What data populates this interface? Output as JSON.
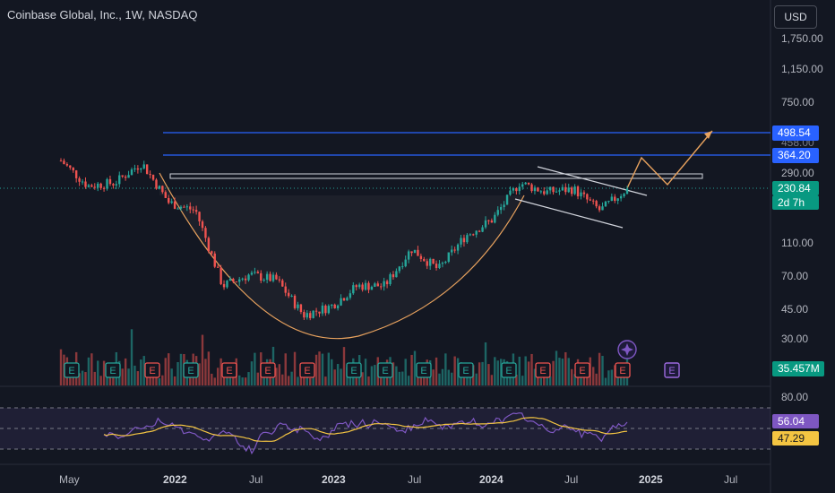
{
  "header": {
    "title": "Coinbase Global, Inc., 1W, NASDAQ",
    "currency_label": "USD"
  },
  "colors": {
    "background": "#131722",
    "up": "#26a69a",
    "down": "#ef5350",
    "blue_line": "#2962ff",
    "projection": "#e8a25e",
    "rsi": "#7e57c2",
    "rsi_ma": "#f4c542"
  },
  "price_axis": {
    "ticks": [
      "1,750.00",
      "1,150.00",
      "750.00",
      "290.00",
      "110.00",
      "70.00",
      "45.00",
      "30.00"
    ],
    "partial_tick": "458.00"
  },
  "rsi_axis": {
    "ticks": [
      "80.00"
    ]
  },
  "tags": {
    "upper_resistance": "498.54",
    "lower_resistance": "364.20",
    "last_price": "230.84",
    "countdown": "2d 7h",
    "volume": "35.457M",
    "rsi": "56.04",
    "rsi_ma": "47.29"
  },
  "x_axis": {
    "labels": [
      "May",
      "2022",
      "Jul",
      "2023",
      "Jul",
      "2024",
      "Jul",
      "2025",
      "Jul"
    ]
  },
  "earnings_markers": {
    "letter": "E"
  },
  "chart_data": {
    "type": "candlestick",
    "title": "Coinbase Global, Inc., 1W, NASDAQ",
    "y_scale": "log",
    "x": [
      "2021-04",
      "2021-06",
      "2021-09",
      "2021-11",
      "2022-01",
      "2022-03",
      "2022-05",
      "2022-07",
      "2022-09",
      "2022-11",
      "2023-01",
      "2023-03",
      "2023-05",
      "2023-07",
      "2023-09",
      "2023-11",
      "2024-01",
      "2024-03",
      "2024-05",
      "2024-07",
      "2024-09",
      "2024-11"
    ],
    "close": [
      340,
      240,
      250,
      330,
      190,
      170,
      60,
      70,
      65,
      40,
      45,
      60,
      60,
      100,
      75,
      120,
      150,
      250,
      220,
      230,
      170,
      230.84
    ],
    "horizontal_levels": [
      498.54,
      364.2
    ],
    "last_close": 230.84,
    "last_volume": "35.457M",
    "rsi_last": 56.04,
    "rsi_ma_last": 47.29,
    "rsi_bands": [
      70,
      50,
      30
    ],
    "rsi_range": [
      0,
      100
    ]
  }
}
